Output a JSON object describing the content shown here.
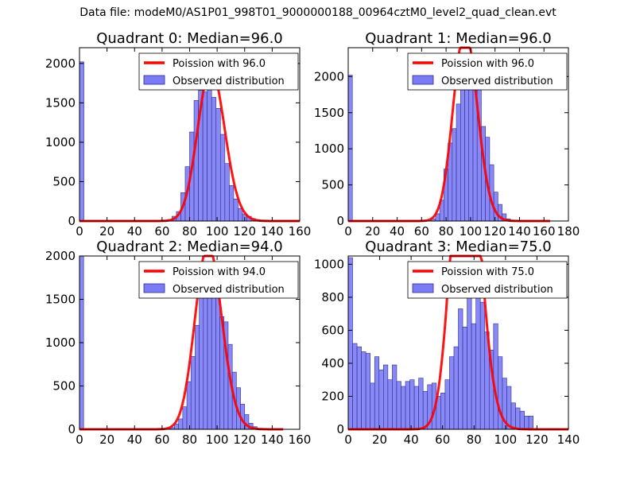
{
  "suptitle": "Data file: modeM0/AS1P01_998T01_9000000188_00964cztM0_level2_quad_clean.evt",
  "colors": {
    "bar_fill": "#7b7bf5",
    "bar_edge": "#2e2e8f",
    "fit_line": "#ff0000"
  },
  "chart_data": [
    {
      "type": "bar",
      "title": "Quadrant 0: Median=96.0",
      "xlim": [
        0,
        160
      ],
      "ylim": [
        0,
        2200
      ],
      "xticks": [
        0,
        20,
        40,
        60,
        80,
        100,
        120,
        140,
        160
      ],
      "yticks": [
        0,
        500,
        1000,
        1500,
        2000
      ],
      "legend": {
        "placement": "top-right",
        "fit_label": "Poission with 96.0",
        "observed_label": "Observed distribution"
      },
      "bins": {
        "start": 0,
        "width": 3.2,
        "counts": [
          2020,
          0,
          0,
          0,
          0,
          0,
          0,
          0,
          0,
          0,
          0,
          0,
          0,
          0,
          0,
          0,
          0,
          0,
          0,
          5,
          20,
          60,
          120,
          360,
          690,
          1130,
          1530,
          1660,
          1640,
          1700,
          1570,
          1430,
          1100,
          730,
          450,
          280,
          160,
          90,
          60,
          30,
          15,
          5,
          0,
          0,
          0,
          0,
          0,
          0,
          0,
          0
        ]
      },
      "fit": {
        "lambda": 96.0,
        "x_max": 160
      }
    },
    {
      "type": "bar",
      "title": "Quadrant 1: Median=96.0",
      "xlim": [
        0,
        180
      ],
      "ylim": [
        0,
        2400
      ],
      "xticks": [
        0,
        20,
        40,
        60,
        80,
        100,
        120,
        140,
        160,
        180
      ],
      "yticks": [
        0,
        500,
        1000,
        1500,
        2000
      ],
      "legend": {
        "placement": "top-right",
        "fit_label": "Poission with 96.0",
        "observed_label": "Observed distribution"
      },
      "bins": {
        "start": 0,
        "width": 3.4,
        "counts": [
          2020,
          0,
          0,
          0,
          0,
          0,
          0,
          0,
          0,
          0,
          0,
          0,
          0,
          0,
          0,
          0,
          0,
          0,
          0,
          5,
          30,
          100,
          290,
          720,
          1080,
          1280,
          1620,
          1830,
          2050,
          2170,
          2000,
          1860,
          1310,
          1160,
          780,
          400,
          230,
          100,
          30,
          10,
          0,
          0,
          0,
          0,
          0,
          0,
          0,
          0,
          0,
          0
        ]
      },
      "fit": {
        "lambda": 96.0,
        "x_max": 165
      }
    },
    {
      "type": "bar",
      "title": "Quadrant 2: Median=94.0",
      "xlim": [
        0,
        160
      ],
      "ylim": [
        0,
        2000
      ],
      "xticks": [
        0,
        20,
        40,
        60,
        80,
        100,
        120,
        140,
        160
      ],
      "yticks": [
        0,
        500,
        1000,
        1500,
        2000
      ],
      "legend": {
        "placement": "top-right",
        "fit_label": "Poission with 94.0",
        "observed_label": "Observed distribution"
      },
      "bins": {
        "start": 0,
        "width": 3.0,
        "counts": [
          2000,
          0,
          0,
          0,
          0,
          0,
          0,
          0,
          0,
          0,
          0,
          0,
          0,
          0,
          0,
          0,
          0,
          0,
          0,
          0,
          0,
          10,
          20,
          60,
          120,
          260,
          550,
          840,
          1200,
          1700,
          1720,
          1860,
          1900,
          1760,
          1300,
          1240,
          980,
          660,
          480,
          290,
          170,
          70,
          30,
          10,
          5,
          0,
          0,
          0,
          0,
          0
        ]
      },
      "fit": {
        "lambda": 94.0,
        "x_max": 148
      }
    },
    {
      "type": "bar",
      "title": "Quadrant 3: Median=75.0",
      "xlim": [
        0,
        140
      ],
      "ylim": [
        0,
        1050
      ],
      "xticks": [
        0,
        20,
        40,
        60,
        80,
        100,
        120,
        140
      ],
      "yticks": [
        0,
        200,
        400,
        600,
        800,
        1000
      ],
      "legend": {
        "placement": "top-right",
        "fit_label": "Poission with 75.0",
        "observed_label": "Observed distribution"
      },
      "bins": {
        "start": 0,
        "width": 2.8,
        "counts": [
          1040,
          520,
          500,
          470,
          460,
          280,
          440,
          360,
          390,
          300,
          390,
          290,
          260,
          290,
          300,
          260,
          310,
          230,
          270,
          280,
          200,
          220,
          300,
          440,
          500,
          730,
          620,
          830,
          640,
          850,
          770,
          590,
          480,
          640,
          440,
          310,
          260,
          160,
          130,
          110,
          80,
          80,
          0,
          0,
          0,
          0,
          0,
          0,
          0,
          0
        ]
      },
      "fit": {
        "lambda": 75.0,
        "x_max": 140
      }
    }
  ]
}
